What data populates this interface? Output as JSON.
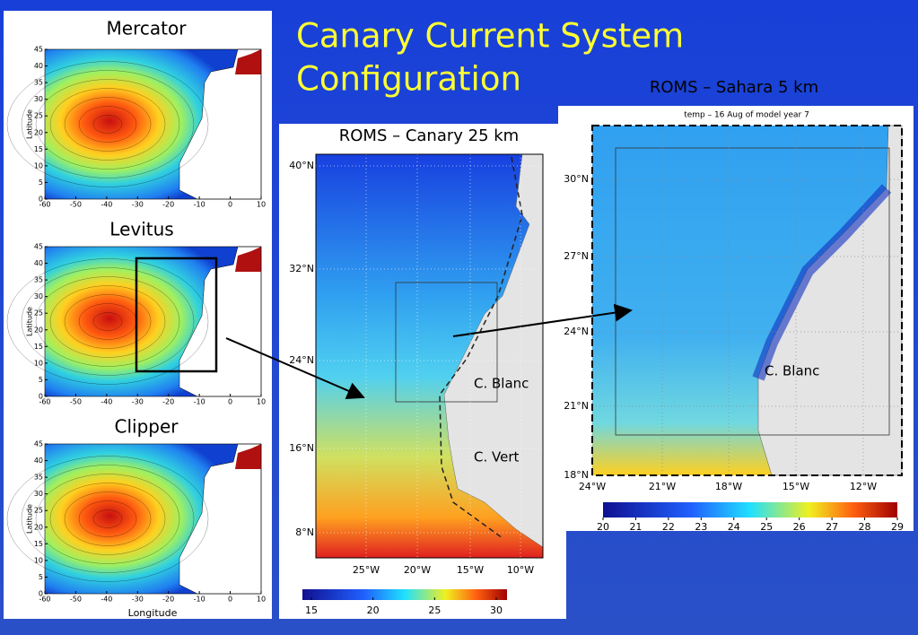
{
  "title": {
    "lines": [
      "Canary Current System",
      "Configuration"
    ]
  },
  "left_panels": {
    "panels": [
      {
        "label": "Mercator"
      },
      {
        "label": "Levitus"
      },
      {
        "label": "Clipper"
      }
    ],
    "yticks": [
      0,
      5,
      10,
      15,
      20,
      25,
      30,
      35,
      40,
      45
    ],
    "xticks": [
      -60,
      -50,
      -40,
      -30,
      -20,
      -10,
      0,
      10
    ],
    "ylabel": "Latitude",
    "xlabel": "Longitude"
  },
  "canary": {
    "label": "ROMS – Canary 25 km",
    "yticks": [
      "40°N",
      "32°N",
      "24°N",
      "16°N",
      "8°N"
    ],
    "xticks": [
      "25°W",
      "20°W",
      "15°W",
      "10°W"
    ],
    "annotations": [
      "C. Blanc",
      "C. Vert"
    ],
    "colorbar": [
      15,
      20,
      25,
      30
    ]
  },
  "sahara": {
    "label": "ROMS – Sahara 5 km",
    "plot_title": "temp – 16 Aug of model year 7",
    "yticks": [
      "30°N",
      "27°N",
      "24°N",
      "21°N",
      "18°N"
    ],
    "xticks": [
      "24°W",
      "21°W",
      "18°W",
      "15°W",
      "12°W"
    ],
    "annotations": [
      "C. Blanc"
    ],
    "colorbar": [
      20,
      21,
      22,
      23,
      24,
      25,
      26,
      27,
      28,
      29
    ]
  }
}
